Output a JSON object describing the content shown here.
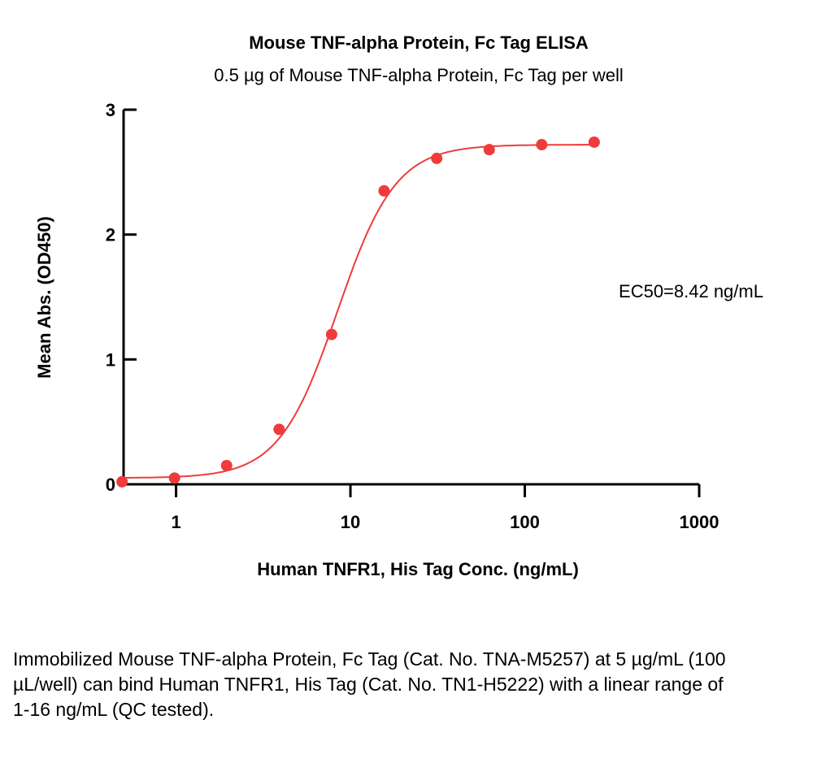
{
  "chart_data": {
    "type": "scatter",
    "title": "Mouse TNF-alpha Protein, Fc Tag ELISA",
    "subtitle": "0.5 µg of Mouse TNF-alpha Protein, Fc Tag per well",
    "xlabel": "Human TNFR1, His Tag Conc. (ng/mL)",
    "ylabel": "Mean Abs. (OD450)",
    "x_scale": "log",
    "xlim": [
      0.5,
      1000
    ],
    "ylim": [
      0,
      3
    ],
    "x_ticks": [
      1,
      10,
      100,
      1000
    ],
    "x_tick_labels": [
      "1",
      "10",
      "100",
      "1000"
    ],
    "y_ticks": [
      0,
      1,
      2,
      3
    ],
    "y_tick_labels": [
      "0",
      "1",
      "2",
      "3"
    ],
    "grid": false,
    "series": [
      {
        "x": [
          0.49,
          0.98,
          1.95,
          3.9,
          7.8,
          15.6,
          31.25,
          62.5,
          125,
          250
        ],
        "y": [
          0.02,
          0.05,
          0.15,
          0.44,
          1.2,
          2.35,
          2.61,
          2.68,
          2.72,
          2.74
        ],
        "color": "#ef3b3b"
      }
    ],
    "fit_curve": {
      "model": "4PL",
      "bottom": 0.05,
      "top": 2.72,
      "ec50": 8.42,
      "hill": 2.6,
      "color": "#ef3b3b"
    },
    "annotation": "EC50=8.42 ng/mL"
  },
  "caption": "Immobilized Mouse TNF-alpha Protein, Fc Tag (Cat. No. TNA-M5257) at 5 µg/mL (100 µL/well) can bind Human TNFR1, His Tag (Cat. No. TN1-H5222) with a linear range of 1-16 ng/mL (QC tested)."
}
